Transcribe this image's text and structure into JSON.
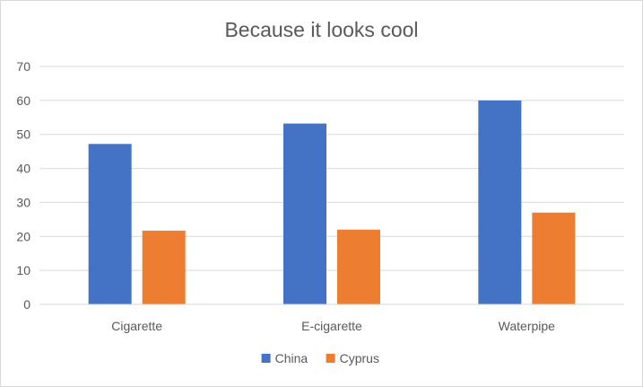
{
  "chart_data": {
    "type": "bar",
    "title": "Because it looks cool",
    "categories": [
      "Cigarette",
      "E-cigarette",
      "Waterpipe"
    ],
    "series": [
      {
        "name": "China",
        "color": "#4472C4",
        "values": [
          47.2,
          53.2,
          60.0
        ]
      },
      {
        "name": "Cyprus",
        "color": "#ED7D31",
        "values": [
          21.7,
          22.0,
          27.0
        ]
      }
    ],
    "ylim": [
      0,
      70
    ],
    "yticks": [
      0,
      10,
      20,
      30,
      40,
      50,
      60,
      70
    ],
    "grid": true,
    "legend_position": "bottom"
  }
}
